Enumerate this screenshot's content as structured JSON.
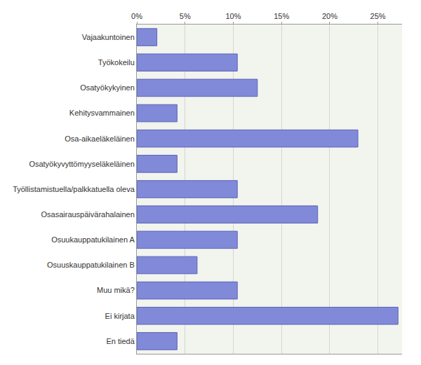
{
  "chart_data": {
    "type": "bar",
    "orientation": "horizontal",
    "categories": [
      "Vajaakuntoinen",
      "Työkokeilu",
      "Osatyökykyinen",
      "Kehitysvammainen",
      "Osa-aikaeläkeläinen",
      "Osatyökyvyttömyyseläkeläinen",
      "Työllistamistuella/palkkatuella oleva",
      "Osasairauspäivärahalainen",
      "Osuukauppatukilainen A",
      "Osuuskauppatukilainen B",
      "Muu mikä?",
      "Ei kirjata",
      "En tiedä"
    ],
    "values": [
      2.08,
      10.42,
      12.5,
      4.17,
      22.92,
      4.17,
      10.42,
      18.75,
      10.42,
      6.25,
      10.42,
      27.08,
      4.17
    ],
    "color": "#8189d9",
    "xlim": [
      0,
      27.5
    ],
    "xticks": [
      {
        "value": 0,
        "label": "0%"
      },
      {
        "value": 5,
        "label": "5%"
      },
      {
        "value": 10,
        "label": "10%"
      },
      {
        "value": 15,
        "label": "15%"
      },
      {
        "value": 20,
        "label": "20%"
      },
      {
        "value": 25,
        "label": "25%"
      }
    ],
    "grid": true
  }
}
